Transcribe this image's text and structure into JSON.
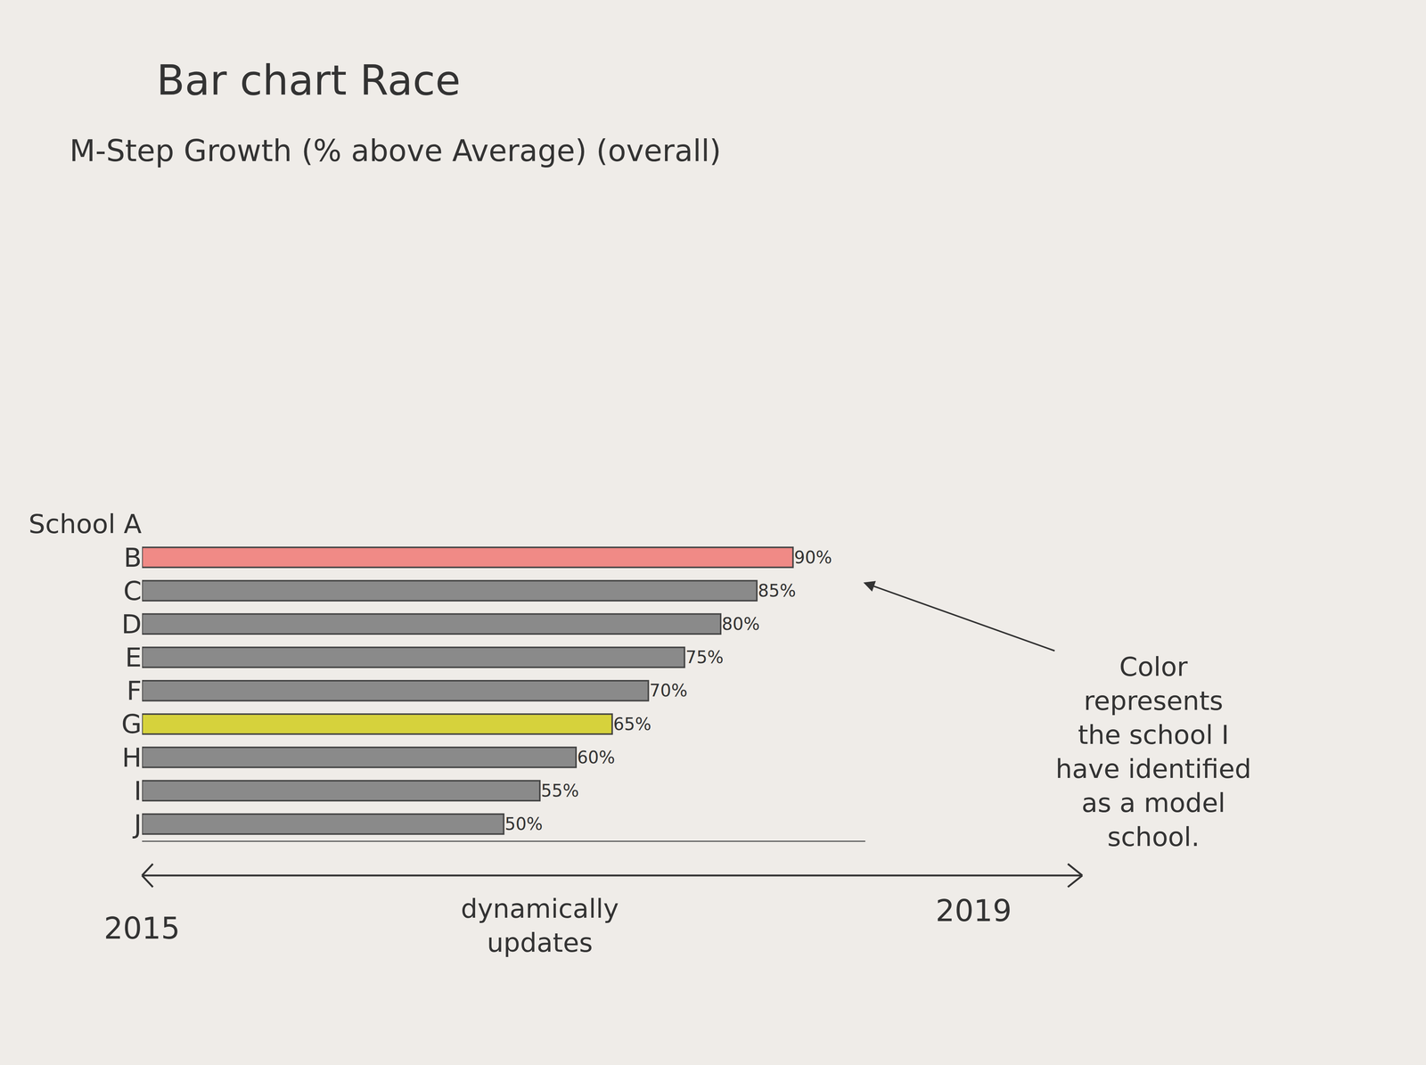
{
  "chart_data": {
    "type": "bar",
    "orientation": "horizontal",
    "title": "Bar chart Race",
    "subtitle": "M-Step Growth (% above Average) (overall)",
    "categories": [
      "School A",
      "B",
      "C",
      "D",
      "E",
      "F",
      "G",
      "H",
      "I",
      "J"
    ],
    "values": [
      null,
      90,
      85,
      80,
      75,
      70,
      65,
      60,
      55,
      50
    ],
    "value_labels": [
      null,
      "90%",
      "85%",
      "80%",
      "75%",
      "70%",
      "65%",
      "60%",
      "55%",
      "50%"
    ],
    "colors": [
      "#8a8a8a",
      "#f08a86",
      "#8a8a8a",
      "#8a8a8a",
      "#8a8a8a",
      "#8a8a8a",
      "#d6d23c",
      "#8a8a8a",
      "#8a8a8a",
      "#8a8a8a"
    ],
    "xlim": [
      0,
      100
    ],
    "xticks": [],
    "grid": false,
    "data_labels": true,
    "tick_labels": "y",
    "note": [
      "Color",
      "represents",
      "the school I",
      "have identified",
      "as a model",
      "school."
    ],
    "timeline": {
      "label": [
        "dynamically",
        "updates"
      ],
      "start": 2015,
      "end": 2019
    }
  }
}
